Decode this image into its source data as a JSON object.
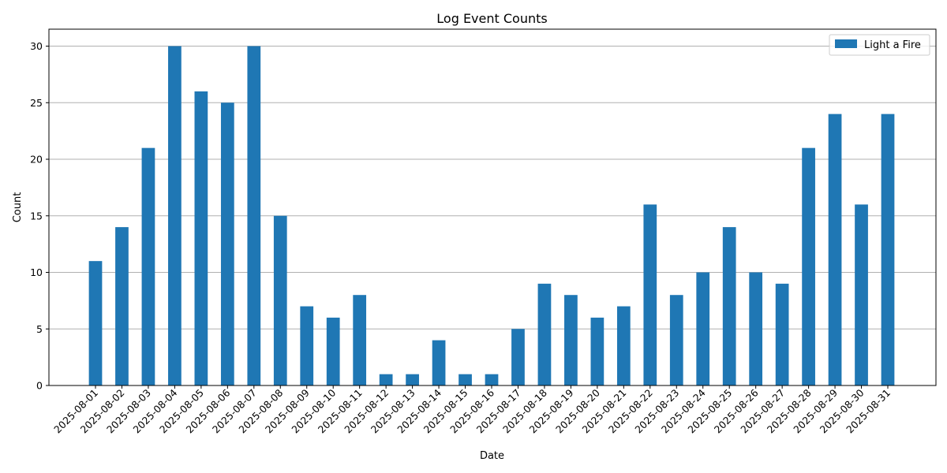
{
  "chart_data": {
    "type": "bar",
    "title": "Log Event Counts",
    "xlabel": "Date",
    "ylabel": "Count",
    "ylim": [
      0,
      31.5
    ],
    "yticks": [
      0,
      5,
      10,
      15,
      20,
      25,
      30
    ],
    "grid": "y",
    "legend_position": "top-right",
    "categories": [
      "2025-08-01",
      "2025-08-02",
      "2025-08-03",
      "2025-08-04",
      "2025-08-05",
      "2025-08-06",
      "2025-08-07",
      "2025-08-08",
      "2025-08-09",
      "2025-08-10",
      "2025-08-11",
      "2025-08-12",
      "2025-08-13",
      "2025-08-14",
      "2025-08-15",
      "2025-08-16",
      "2025-08-17",
      "2025-08-18",
      "2025-08-19",
      "2025-08-20",
      "2025-08-21",
      "2025-08-22",
      "2025-08-23",
      "2025-08-24",
      "2025-08-25",
      "2025-08-26",
      "2025-08-27",
      "2025-08-28",
      "2025-08-29",
      "2025-08-30",
      "2025-08-31"
    ],
    "series": [
      {
        "name": "Light a Fire",
        "color": "#1f77b4",
        "values": [
          11,
          14,
          21,
          30,
          26,
          25,
          30,
          15,
          7,
          6,
          8,
          1,
          1,
          4,
          1,
          1,
          5,
          9,
          8,
          6,
          7,
          16,
          8,
          10,
          14,
          10,
          9,
          21,
          24,
          16,
          24
        ]
      }
    ]
  }
}
